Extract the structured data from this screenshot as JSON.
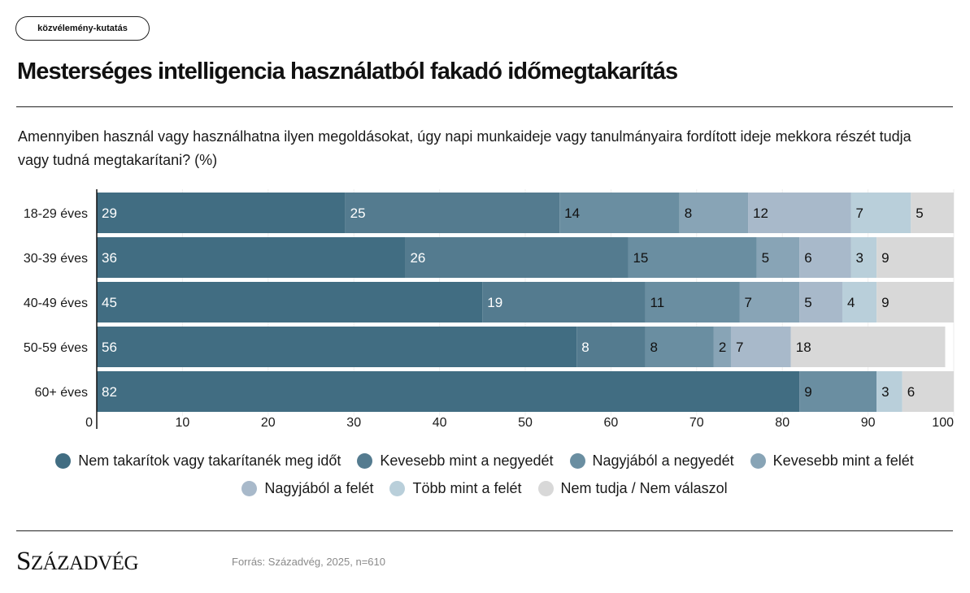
{
  "tag_label": "közvélemény-kutatás",
  "title": "Mesterséges intelligencia használatból fakadó időmegtakarítás",
  "subtitle": "Amennyiben használ vagy használhatna ilyen megoldásokat, úgy napi munkaideje vagy tanulmányaira fordított ideje mekkora részét tudja vagy tudná megtakarítani? (%)",
  "logo": "Századvég",
  "source": "Forrás: Századvég, 2025, n=610",
  "colors": [
    "#416d82",
    "#547b8f",
    "#6a8ea1",
    "#88a4b6",
    "#a8b9ca",
    "#b9cfda",
    "#d8d8d8"
  ],
  "chart_data": {
    "type": "bar",
    "orientation": "horizontal",
    "stacked": true,
    "categories": [
      "18-29 éves",
      "30-39 éves",
      "40-49 éves",
      "50-59 éves",
      "60+ éves"
    ],
    "series": [
      {
        "name": "Nem takarítok vagy takarítanék meg időt",
        "values": [
          29,
          36,
          45,
          56,
          82
        ]
      },
      {
        "name": "Kevesebb mint a negyedét",
        "values": [
          25,
          26,
          19,
          8,
          0
        ]
      },
      {
        "name": "Nagyjából a negyedét",
        "values": [
          14,
          15,
          11,
          8,
          9
        ]
      },
      {
        "name": "Kevesebb mint a felét",
        "values": [
          8,
          5,
          7,
          2,
          0
        ]
      },
      {
        "name": "Nagyjából a felét",
        "values": [
          12,
          6,
          5,
          7,
          0
        ]
      },
      {
        "name": "Több mint a felét",
        "values": [
          7,
          3,
          4,
          0,
          3
        ]
      },
      {
        "name": "Nem tudja / Nem válaszol",
        "values": [
          5,
          9,
          9,
          18,
          6
        ]
      }
    ],
    "xlim": [
      0,
      100
    ],
    "xticks": [
      0,
      10,
      20,
      30,
      40,
      50,
      60,
      70,
      80,
      90,
      100
    ],
    "grid": true,
    "legend_position": "bottom"
  }
}
